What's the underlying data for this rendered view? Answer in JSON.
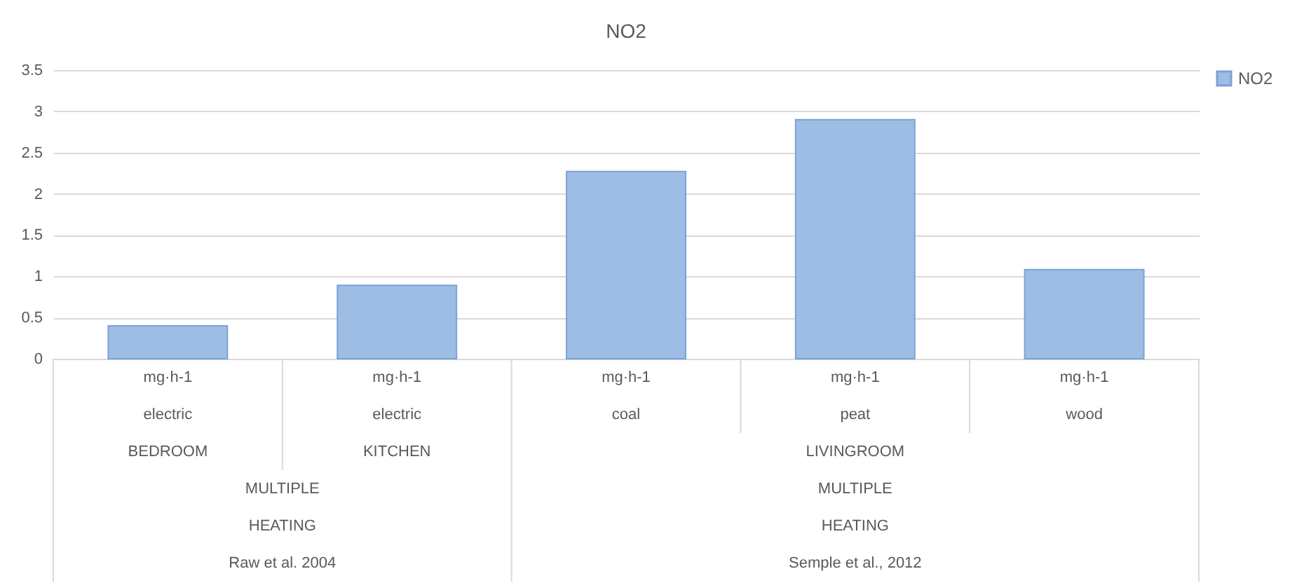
{
  "chart_data": {
    "type": "bar",
    "title": "NO2",
    "categories": [
      "mg·h-1",
      "mg·h-1",
      "mg·h-1",
      "mg·h-1",
      "mg·h-1"
    ],
    "series": [
      {
        "name": "NO2",
        "color": "#9dbde4",
        "values": [
          0.4,
          0.89,
          2.27,
          2.9,
          1.08
        ]
      }
    ],
    "ylim": [
      0,
      3.5
    ],
    "yticks": [
      0,
      0.5,
      1,
      1.5,
      2,
      2.5,
      3,
      3.5
    ],
    "grid": "y",
    "legend": "right",
    "annotations": [
      "electric",
      "electric",
      "coal",
      "peat",
      "wood",
      "BEDROOM",
      "KITCHEN",
      "LIVINGROOM",
      "MULTIPLE",
      "HEATING",
      "MULTIPLE",
      "HEATING",
      "Raw et al. 2004",
      "Semple et al., 2012"
    ]
  }
}
